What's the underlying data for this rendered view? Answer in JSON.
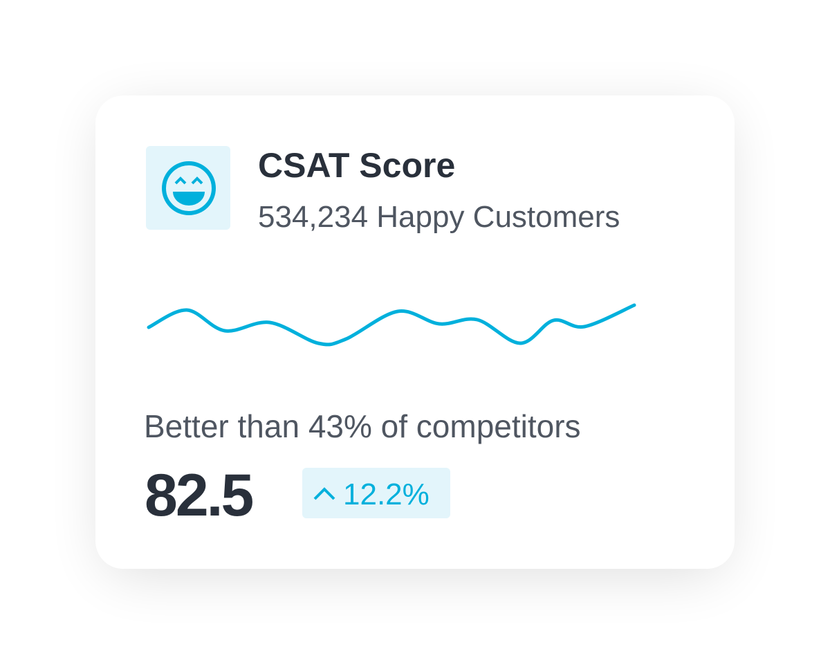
{
  "header": {
    "title": "CSAT Score",
    "subtitle": "534,234 Happy Customers"
  },
  "chart_data": {
    "type": "line",
    "x": [
      0,
      55,
      110,
      175,
      245,
      285,
      360,
      420,
      475,
      537,
      585,
      630,
      702
    ],
    "values": [
      27,
      52,
      22,
      34,
      4,
      10,
      50,
      32,
      38,
      4,
      37,
      28,
      59
    ],
    "xlim": [
      0,
      702
    ],
    "ylim": [
      0,
      65
    ],
    "color": "#00b0dc"
  },
  "summary": {
    "text": "Better than 43% of competitors",
    "score": "82.5",
    "change": "12.2%"
  }
}
